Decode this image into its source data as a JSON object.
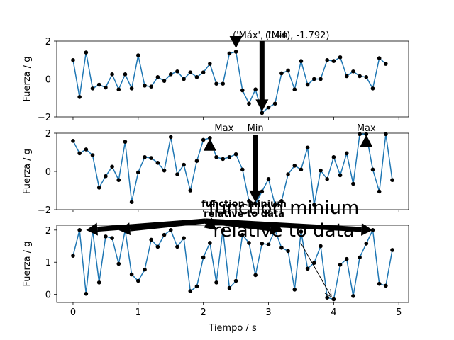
{
  "chart_data": {
    "type": "line",
    "xlabel": "Tiempo / s",
    "xlim": [
      -0.25,
      5.15
    ],
    "xticks": [
      0,
      1,
      2,
      3,
      4,
      5
    ],
    "x": [
      0.0,
      0.1,
      0.2,
      0.3,
      0.4,
      0.5,
      0.6,
      0.7,
      0.8,
      0.9,
      1.0,
      1.1,
      1.2,
      1.3,
      1.4,
      1.5,
      1.6,
      1.7,
      1.8,
      1.9,
      2.0,
      2.1,
      2.2,
      2.3,
      2.4,
      2.5,
      2.6,
      2.7,
      2.8,
      2.9,
      3.0,
      3.1,
      3.2,
      3.3,
      3.4,
      3.5,
      3.6,
      3.7,
      3.8,
      3.9,
      4.0,
      4.1,
      4.2,
      4.3,
      4.4,
      4.5,
      4.6,
      4.7,
      4.8,
      4.9
    ],
    "panels": [
      {
        "ylabel": "Fuerza / g",
        "ylim": [
          -2,
          2
        ],
        "yticks": [
          -2,
          0,
          2
        ],
        "values": [
          1.0,
          -0.95,
          1.4,
          -0.5,
          -0.3,
          -0.45,
          0.25,
          -0.55,
          0.25,
          -0.5,
          1.25,
          -0.35,
          -0.4,
          0.1,
          -0.1,
          0.25,
          0.4,
          0.0,
          0.35,
          0.1,
          0.35,
          0.8,
          -0.25,
          -0.25,
          1.35,
          1.44,
          -0.6,
          -1.3,
          -0.55,
          -1.792,
          -1.5,
          -1.3,
          0.3,
          0.45,
          -0.55,
          0.95,
          -0.3,
          0.0,
          0.0,
          1.0,
          0.95,
          1.15,
          0.15,
          0.4,
          0.15,
          0.1,
          -0.5,
          1.1,
          0.8,
          null
        ],
        "annotations": [
          {
            "label": "('Máx', 1.44)",
            "x": 2.5,
            "y": 1.44,
            "text_x": 2.45,
            "text_y": 2.2
          },
          {
            "label": "('Min', -1.792)",
            "x": 2.9,
            "y": -1.792,
            "text_x": 2.95,
            "text_y": 2.2
          }
        ]
      },
      {
        "ylabel": "Fuerza / g",
        "ylim": [
          -2,
          2
        ],
        "yticks": [
          -2,
          0,
          2
        ],
        "values": [
          1.6,
          0.95,
          1.15,
          0.85,
          -0.85,
          -0.25,
          0.25,
          -0.45,
          1.55,
          -1.6,
          -0.05,
          0.75,
          0.7,
          0.45,
          0.05,
          1.8,
          -0.15,
          0.35,
          -1.0,
          0.55,
          1.65,
          1.75,
          0.75,
          0.65,
          0.75,
          0.9,
          0.1,
          -1.55,
          -1.7,
          -1.05,
          -0.4,
          -1.75,
          -1.55,
          -0.15,
          0.3,
          0.1,
          1.25,
          -1.75,
          0.05,
          -0.4,
          0.75,
          -0.2,
          0.95,
          -0.65,
          1.95,
          1.95,
          0.1,
          -1.05,
          1.95,
          -0.45
        ],
        "annotations": [
          {
            "label": "Max",
            "x": 2.1,
            "y": 1.75,
            "text_x": 2.1,
            "text_y": 2.4
          },
          {
            "label": "Min",
            "x": 2.8,
            "y": -1.7,
            "text_x": 2.8,
            "text_y": 2.4
          },
          {
            "label": "Max",
            "x": 4.5,
            "y": 1.95,
            "text_x": 4.5,
            "text_y": 2.4
          }
        ]
      },
      {
        "ylabel": "Fuerza / g",
        "ylim": [
          -0.25,
          2.15
        ],
        "yticks": [
          0,
          1,
          2
        ],
        "values": [
          1.2,
          2.0,
          0.02,
          2.0,
          0.37,
          1.8,
          1.75,
          0.95,
          2.0,
          0.62,
          0.42,
          0.77,
          1.7,
          1.48,
          1.85,
          2.0,
          1.48,
          1.75,
          0.1,
          0.25,
          1.15,
          1.6,
          0.37,
          2.0,
          0.2,
          0.42,
          1.85,
          1.6,
          0.6,
          1.58,
          1.55,
          2.0,
          1.45,
          1.35,
          0.15,
          1.95,
          0.8,
          0.98,
          1.5,
          -0.1,
          -0.15,
          0.92,
          1.1,
          -0.05,
          1.15,
          1.58,
          2.0,
          0.33,
          0.27,
          1.38
        ],
        "arrows": [
          {
            "x": 0.2,
            "y": 2.0
          },
          {
            "x": 0.7,
            "y": 2.0
          },
          {
            "x": 2.2,
            "y": 2.0
          },
          {
            "x": 3.2,
            "y": 2.0
          },
          {
            "x": 4.6,
            "y": 2.0
          }
        ],
        "annotations": [
          {
            "label": "function minium relative to data",
            "size": "small"
          },
          {
            "label": "function minium relative to data",
            "size": "large"
          }
        ]
      }
    ]
  }
}
